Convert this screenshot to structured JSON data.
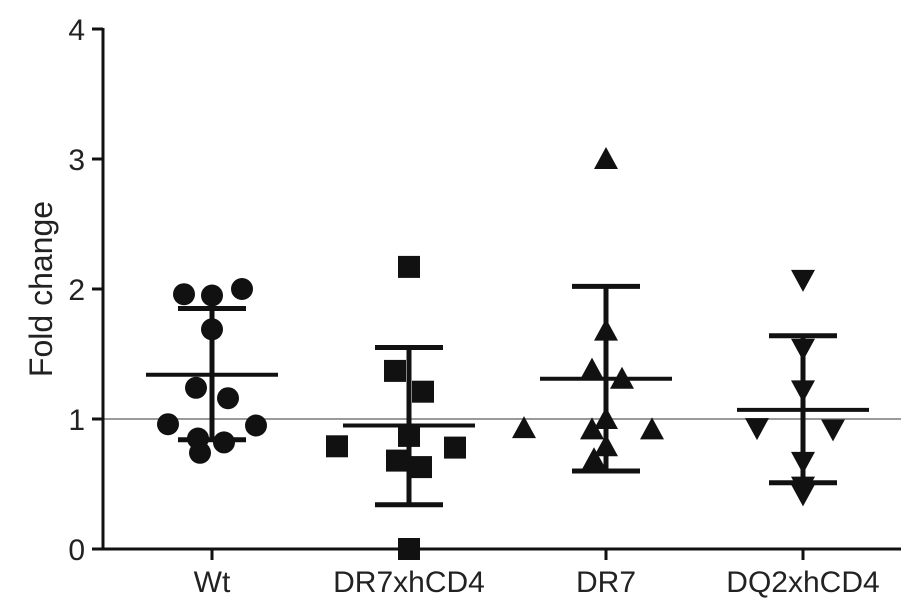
{
  "chart_data": {
    "type": "scatter",
    "title": "",
    "xlabel": "",
    "ylabel": "Fold change",
    "ylim": [
      0,
      4
    ],
    "yticks": [
      "0",
      "1",
      "2",
      "3",
      "4"
    ],
    "grid": false,
    "reference_line": 1,
    "categories": [
      "Wt",
      "DR7xhCD4",
      "DR7",
      "DQ2xhCD4"
    ],
    "series": [
      {
        "category": "Wt",
        "marker": "circle",
        "mean": 1.34,
        "sd_upper": 1.85,
        "sd_lower": 0.84,
        "values": [
          1.96,
          1.95,
          2.0,
          1.69,
          1.24,
          1.16,
          0.96,
          0.95,
          0.85,
          0.82,
          0.74
        ]
      },
      {
        "category": "DR7xhCD4",
        "marker": "square",
        "mean": 0.95,
        "sd_upper": 1.55,
        "sd_lower": 0.34,
        "values": [
          2.17,
          1.37,
          1.21,
          0.87,
          0.79,
          0.78,
          0.68,
          0.63,
          0.0
        ]
      },
      {
        "category": "DR7",
        "marker": "triangle-up",
        "mean": 1.31,
        "sd_upper": 2.02,
        "sd_lower": 0.6,
        "values": [
          3.0,
          1.68,
          1.38,
          1.31,
          1.0,
          0.93,
          0.92,
          0.92,
          0.79,
          0.69
        ]
      },
      {
        "category": "DQ2xhCD4",
        "marker": "triangle-down",
        "mean": 1.07,
        "sd_upper": 1.64,
        "sd_lower": 0.51,
        "values": [
          2.07,
          1.54,
          1.22,
          0.93,
          0.92,
          0.67,
          0.48,
          0.42
        ]
      }
    ]
  }
}
